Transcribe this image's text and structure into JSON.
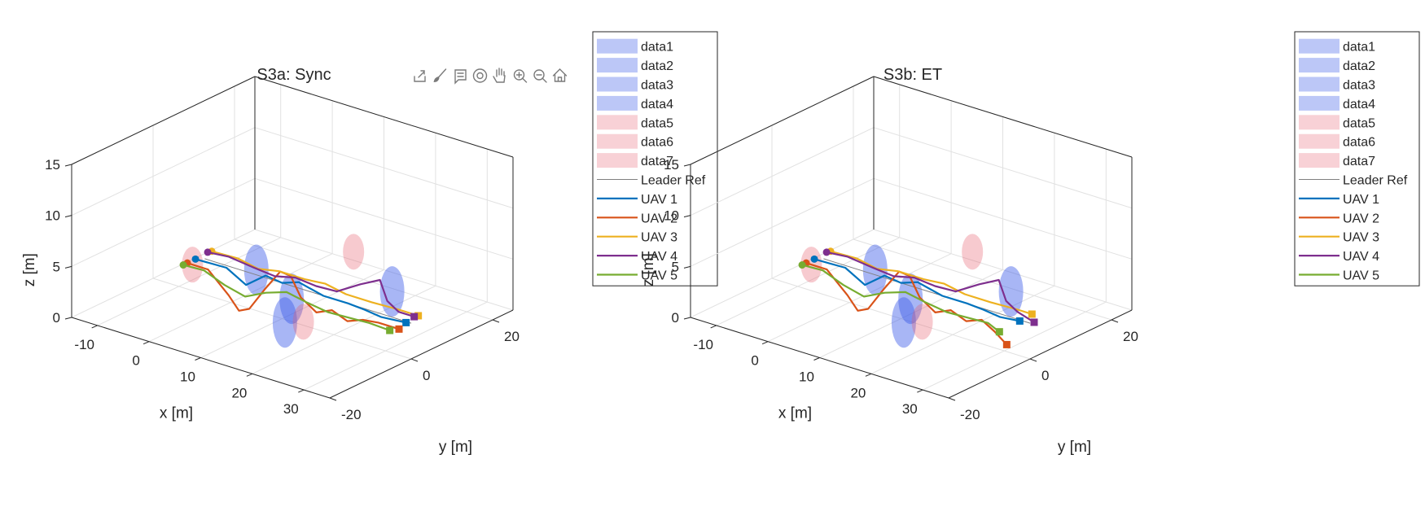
{
  "toolbar": {
    "icons": [
      "export-icon",
      "brush-icon",
      "data-tips-icon",
      "rotate-3d-icon",
      "pan-icon",
      "zoom-in-icon",
      "zoom-out-icon",
      "home-icon"
    ]
  },
  "colors": {
    "uav1": "#0072BD",
    "uav2": "#D95319",
    "uav3": "#EDB120",
    "uav4": "#7E2F8E",
    "uav5": "#77AC30",
    "leader": "#808080",
    "obstacle_blue": "#3f5ee8",
    "obstacle_red": "#e65a6b"
  },
  "chart_data": [
    {
      "type": "line3d",
      "title": "S3a: Sync",
      "xlabel": "x [m]",
      "ylabel": "y [m]",
      "zlabel": "z [m]",
      "xlim": [
        -15,
        35
      ],
      "ylim": [
        -20,
        25
      ],
      "zlim": [
        0,
        15
      ],
      "xticks": [
        "-10",
        "0",
        "10",
        "20",
        "30"
      ],
      "yticks": [
        "-20",
        "0",
        "20"
      ],
      "zticks": [
        "0",
        "5",
        "10",
        "15"
      ],
      "grid": true,
      "legend_position": "outside-right",
      "legend": [
        "data1",
        "data2",
        "data3",
        "data4",
        "data5",
        "data6",
        "data7",
        "Leader Ref",
        "UAV 1",
        "UAV 2",
        "UAV 3",
        "UAV 4",
        "UAV 5"
      ],
      "obstacles": [
        {
          "name": "data1",
          "kind": "blue",
          "x": 5,
          "y": 0,
          "z": 4,
          "r": 1.5
        },
        {
          "name": "data2",
          "kind": "blue",
          "x": 15,
          "y": -4,
          "z": 3.5,
          "r": 1.5
        },
        {
          "name": "data3",
          "kind": "blue",
          "x": 25,
          "y": 8,
          "z": 3.5,
          "r": 1.5
        },
        {
          "name": "data4",
          "kind": "blue",
          "x": 20,
          "y": -12,
          "z": 3.5,
          "r": 1.5
        },
        {
          "name": "data5",
          "kind": "red",
          "x": -5,
          "y": -3,
          "z": 3.5,
          "r": 1.5
        },
        {
          "name": "data6",
          "kind": "red",
          "x": 12,
          "y": 15,
          "z": 4,
          "r": 1.5
        },
        {
          "name": "data7",
          "kind": "red",
          "x": 22,
          "y": -10,
          "z": 3.5,
          "r": 1.5
        }
      ],
      "series": [
        {
          "name": "Leader Ref",
          "color_key": "leader",
          "x": [
            -5,
            5,
            10,
            15,
            20,
            25,
            30,
            35
          ],
          "y": [
            0,
            0,
            0,
            0,
            0,
            0,
            0,
            0
          ],
          "z": [
            3.5,
            3.5,
            3.5,
            3.5,
            3.5,
            3.5,
            3.5,
            3.5
          ]
        },
        {
          "name": "UAV 1",
          "color_key": "uav1",
          "x": [
            -6,
            0,
            3,
            6,
            10,
            14,
            18,
            22,
            26,
            30,
            34
          ],
          "y": [
            -1,
            -1,
            0,
            1,
            0,
            -1,
            0,
            1,
            0,
            -1,
            0
          ],
          "z": [
            3.5,
            3.6,
            2.2,
            3.4,
            3.5,
            4.4,
            3.5,
            3.2,
            3.4,
            3.5,
            3.4
          ]
        },
        {
          "name": "UAV 2",
          "color_key": "uav2",
          "x": [
            -6,
            -2,
            2,
            4,
            6,
            9,
            12,
            14,
            16,
            19,
            22,
            25,
            28,
            31,
            35
          ],
          "y": [
            -3,
            -3,
            -3,
            -3,
            -3,
            -3,
            -3,
            -3,
            -3,
            -3,
            -3,
            -3,
            -3,
            -3,
            -3
          ],
          "z": [
            3.5,
            3.5,
            1.6,
            0.4,
            0.9,
            3.3,
            5.5,
            5.4,
            3.6,
            2.6,
            3.3,
            2.7,
            3.3,
            3.5,
            3.5
          ]
        },
        {
          "name": "UAV 3",
          "color_key": "uav3",
          "x": [
            -6,
            -1,
            3,
            7,
            12,
            16,
            20,
            25,
            30,
            34
          ],
          "y": [
            3,
            3,
            3,
            3,
            3,
            3,
            3,
            3,
            3,
            3
          ],
          "z": [
            3.5,
            3.6,
            3.2,
            3.6,
            3.6,
            3.8,
            3.4,
            3.4,
            3.5,
            3.5
          ]
        },
        {
          "name": "UAV 4",
          "color_key": "uav4",
          "x": [
            -6,
            -2,
            3,
            7,
            11,
            15,
            19,
            22,
            25,
            28,
            31,
            34
          ],
          "y": [
            2,
            2,
            2,
            2,
            2,
            2,
            2,
            4,
            5,
            3,
            2,
            2
          ],
          "z": [
            3.6,
            3.8,
            3.5,
            3.3,
            3.8,
            3.6,
            3.7,
            4.5,
            5.2,
            4.0,
            3.6,
            3.6
          ]
        },
        {
          "name": "UAV 5",
          "color_key": "uav5",
          "x": [
            -6,
            -2,
            2,
            6,
            10,
            14,
            18,
            22,
            26,
            30,
            34
          ],
          "y": [
            -4,
            -4,
            -4,
            -4,
            -4,
            -4,
            -4,
            -4,
            -4,
            -4,
            -4
          ],
          "z": [
            3.5,
            3.6,
            2.8,
            2.3,
            3.3,
            4.0,
            3.6,
            3.3,
            3.4,
            3.5,
            3.4
          ]
        }
      ]
    },
    {
      "type": "line3d",
      "title": "S3b: ET",
      "xlabel": "x [m]",
      "ylabel": "y [m]",
      "zlabel": "z [m]",
      "xlim": [
        -15,
        35
      ],
      "ylim": [
        -20,
        25
      ],
      "zlim": [
        0,
        15
      ],
      "xticks": [
        "-10",
        "0",
        "10",
        "20",
        "30"
      ],
      "yticks": [
        "-20",
        "0",
        "20"
      ],
      "zticks": [
        "0",
        "5",
        "10",
        "15"
      ],
      "grid": true,
      "legend_position": "outside-right",
      "legend": [
        "data1",
        "data2",
        "data3",
        "data4",
        "data5",
        "data6",
        "data7",
        "Leader Ref",
        "UAV 1",
        "UAV 2",
        "UAV 3",
        "UAV 4",
        "UAV 5"
      ],
      "obstacles": [
        {
          "name": "data1",
          "kind": "blue",
          "x": 5,
          "y": 0,
          "z": 4,
          "r": 1.5
        },
        {
          "name": "data2",
          "kind": "blue",
          "x": 15,
          "y": -4,
          "z": 3.5,
          "r": 1.5
        },
        {
          "name": "data3",
          "kind": "blue",
          "x": 25,
          "y": 8,
          "z": 3.5,
          "r": 1.5
        },
        {
          "name": "data4",
          "kind": "blue",
          "x": 20,
          "y": -12,
          "z": 3.5,
          "r": 1.5
        },
        {
          "name": "data5",
          "kind": "red",
          "x": -5,
          "y": -3,
          "z": 3.5,
          "r": 1.5
        },
        {
          "name": "data6",
          "kind": "red",
          "x": 12,
          "y": 15,
          "z": 4,
          "r": 1.5
        },
        {
          "name": "data7",
          "kind": "red",
          "x": 22,
          "y": -10,
          "z": 3.5,
          "r": 1.5
        }
      ],
      "series": [
        {
          "name": "Leader Ref",
          "color_key": "leader",
          "x": [
            -5,
            5,
            10,
            15,
            20,
            25,
            30,
            35
          ],
          "y": [
            0,
            0,
            0,
            0,
            0,
            0,
            0,
            0
          ],
          "z": [
            3.5,
            3.5,
            3.5,
            3.5,
            3.5,
            3.5,
            3.5,
            3.5
          ]
        },
        {
          "name": "UAV 1",
          "color_key": "uav1",
          "x": [
            -6,
            0,
            3,
            6,
            10,
            14,
            18,
            22,
            26,
            30,
            33
          ],
          "y": [
            -1,
            -1,
            0,
            1,
            0,
            -1,
            0,
            1,
            0,
            -1,
            0
          ],
          "z": [
            3.5,
            3.6,
            2.2,
            3.4,
            3.5,
            4.4,
            3.5,
            3.2,
            3.4,
            3.5,
            3.4
          ]
        },
        {
          "name": "UAV 2",
          "color_key": "uav2",
          "x": [
            -6,
            -2,
            2,
            4,
            6,
            9,
            12,
            14,
            16,
            19,
            22,
            25,
            28,
            32,
            36
          ],
          "y": [
            -3,
            -3,
            -3,
            -3,
            -3,
            -3,
            -3,
            -3,
            -3,
            -3,
            -3,
            -3,
            -3,
            -5,
            -7
          ],
          "z": [
            3.5,
            3.5,
            1.6,
            0.4,
            0.9,
            3.3,
            5.5,
            5.4,
            3.6,
            2.6,
            3.3,
            2.7,
            3.3,
            3.2,
            2.9
          ]
        },
        {
          "name": "UAV 3",
          "color_key": "uav3",
          "x": [
            -6,
            -1,
            3,
            7,
            12,
            16,
            20,
            25,
            30,
            33
          ],
          "y": [
            3,
            3,
            3,
            3,
            3,
            3,
            3,
            3,
            3,
            3
          ],
          "z": [
            3.5,
            3.6,
            3.2,
            3.6,
            3.6,
            3.8,
            3.4,
            3.4,
            3.5,
            3.5
          ]
        },
        {
          "name": "UAV 4",
          "color_key": "uav4",
          "x": [
            -6,
            -2,
            3,
            7,
            11,
            15,
            19,
            22,
            25,
            28,
            31,
            35
          ],
          "y": [
            2,
            2,
            2,
            2,
            2,
            2,
            2,
            4,
            5,
            3,
            2,
            1
          ],
          "z": [
            3.6,
            3.8,
            3.5,
            3.3,
            3.8,
            3.6,
            3.7,
            4.5,
            5.2,
            4.0,
            3.6,
            3.4
          ]
        },
        {
          "name": "UAV 5",
          "color_key": "uav5",
          "x": [
            -6,
            -2,
            2,
            6,
            10,
            14,
            18,
            22,
            26,
            30,
            33
          ],
          "y": [
            -4,
            -4,
            -4,
            -4,
            -4,
            -4,
            -4,
            -4,
            -4,
            -4,
            -5
          ],
          "z": [
            3.5,
            3.6,
            2.8,
            2.3,
            3.3,
            4.0,
            3.6,
            3.3,
            3.4,
            3.5,
            3.3
          ]
        }
      ]
    }
  ]
}
